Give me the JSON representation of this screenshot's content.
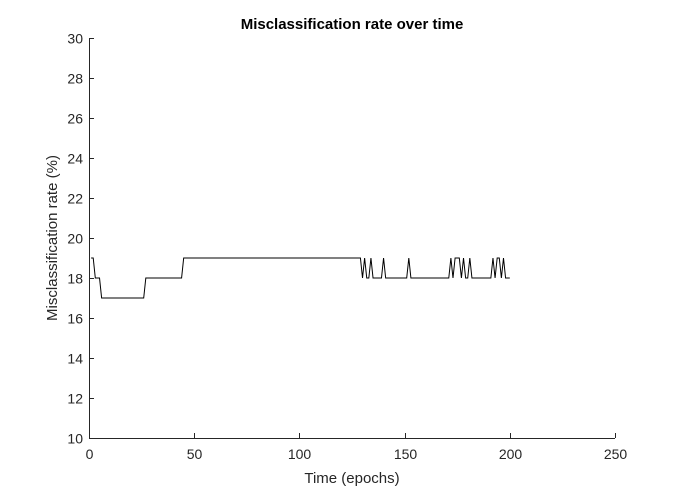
{
  "chart_data": {
    "type": "line",
    "title": "Misclassification rate over time",
    "xlabel": "Time (epochs)",
    "ylabel": "Misclassification rate (%)",
    "xlim": [
      0,
      250
    ],
    "ylim": [
      10,
      30
    ],
    "xticks": [
      0,
      50,
      100,
      150,
      200,
      250
    ],
    "yticks": [
      10,
      12,
      14,
      16,
      18,
      20,
      22,
      24,
      26,
      28,
      30
    ],
    "grid": false,
    "line_color": "#000000",
    "series": [
      {
        "x": [
          1,
          2,
          3,
          4,
          5,
          6,
          7,
          8,
          26,
          27,
          44,
          45,
          129,
          130,
          131,
          132,
          133,
          134,
          135,
          139,
          140,
          141,
          151,
          152,
          153,
          171,
          172,
          173,
          174,
          176,
          177,
          178,
          179,
          180,
          181,
          182,
          183,
          184,
          191,
          192,
          193,
          194,
          195,
          196,
          197,
          198,
          199,
          200
        ],
        "y": [
          19,
          19,
          18,
          18,
          18,
          17,
          17,
          17,
          17,
          18,
          18,
          19,
          19,
          18,
          19,
          18,
          18,
          19,
          18,
          18,
          19,
          18,
          18,
          19,
          18,
          18,
          19,
          18,
          19,
          19,
          18,
          19,
          18,
          18,
          19,
          18,
          18,
          18,
          18,
          19,
          18,
          19,
          19,
          18,
          19,
          18,
          18,
          18
        ]
      }
    ]
  }
}
